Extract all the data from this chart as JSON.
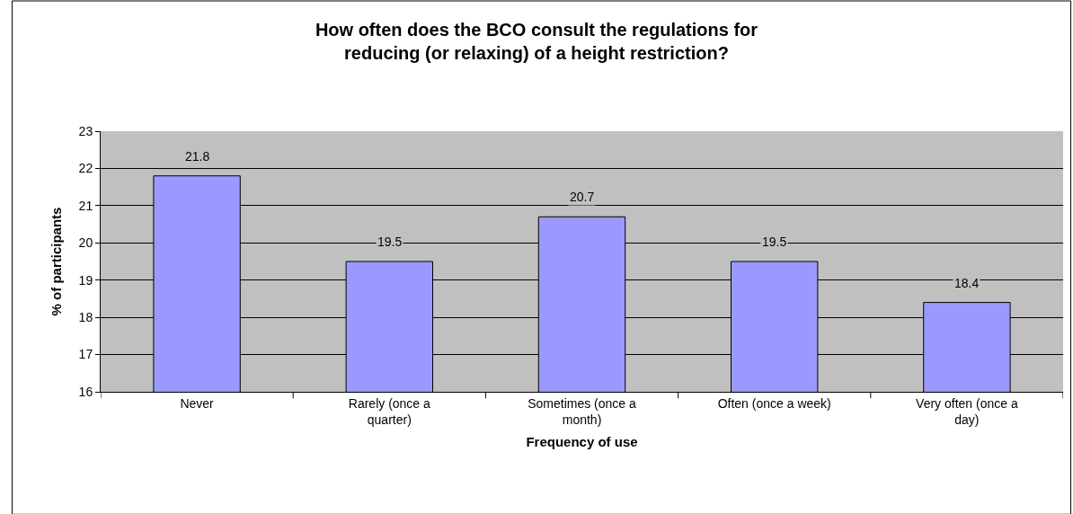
{
  "chart_data": {
    "type": "bar",
    "title": "How often does the BCO consult the regulations for\nreducing (or relaxing) of a height restriction?",
    "xlabel": "Frequency of use",
    "ylabel": "% of participants",
    "categories": [
      "Never",
      "Rarely (once a quarter)",
      "Sometimes (once a month)",
      "Often (once a week)",
      "Very often (once a day)"
    ],
    "values": [
      21.8,
      19.5,
      20.7,
      19.5,
      18.4
    ],
    "color": "#9999ff",
    "ylim": [
      16,
      23
    ],
    "yticks": [
      16,
      17,
      18,
      19,
      20,
      21,
      22,
      23
    ],
    "grid": "y",
    "legend": false,
    "data_labels": true
  }
}
